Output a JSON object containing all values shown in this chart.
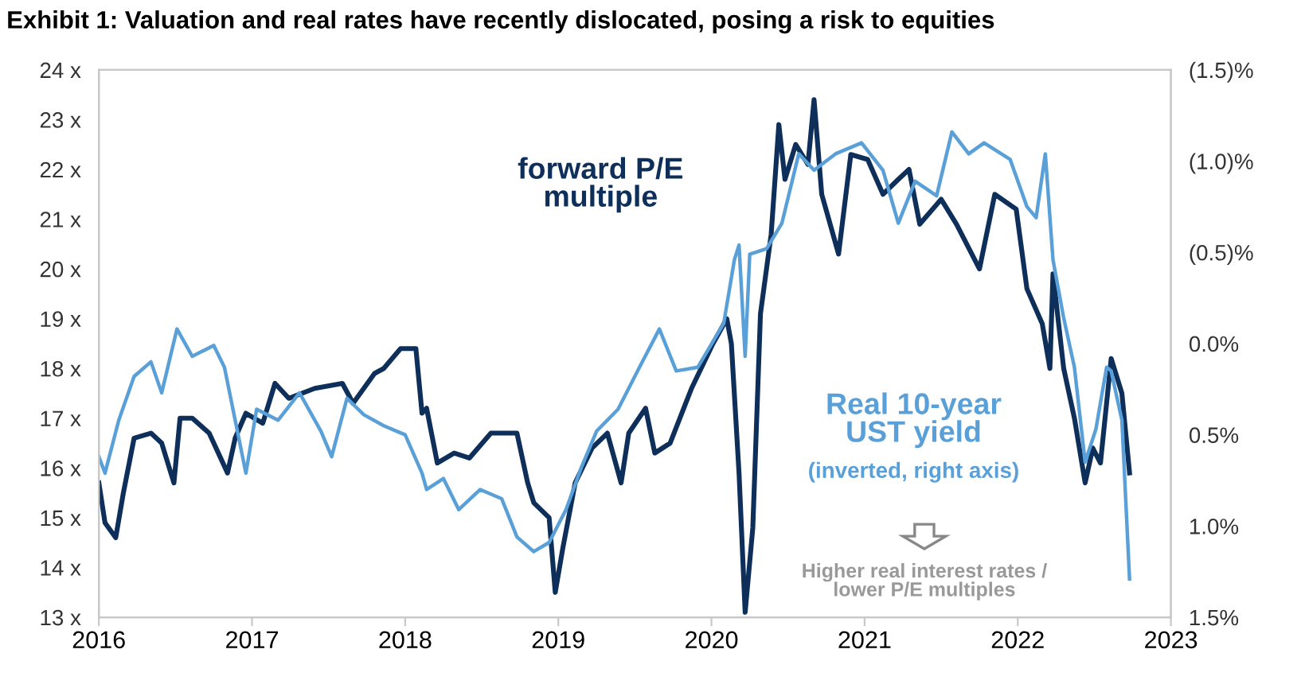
{
  "chart_data": {
    "type": "line",
    "title": "Exhibit 1: Valuation and real rates have recently dislocated, posing a risk to equities",
    "xlim": [
      2016,
      2023
    ],
    "xticks": [
      2016,
      2017,
      2018,
      2019,
      2020,
      2021,
      2022,
      2023
    ],
    "ylim": [
      13,
      24
    ],
    "yticks": [
      {
        "value": 13,
        "label": "13 x"
      },
      {
        "value": 14,
        "label": "14 x"
      },
      {
        "value": 15,
        "label": "15 x"
      },
      {
        "value": 16,
        "label": "16 x"
      },
      {
        "value": 17,
        "label": "17 x"
      },
      {
        "value": 18,
        "label": "18 x"
      },
      {
        "value": 19,
        "label": "19 x"
      },
      {
        "value": 20,
        "label": "20 x"
      },
      {
        "value": 21,
        "label": "21 x"
      },
      {
        "value": 22,
        "label": "22 x"
      },
      {
        "value": 23,
        "label": "23 x"
      },
      {
        "value": 24,
        "label": "24 x"
      }
    ],
    "y2lim": [
      1.5,
      -1.5
    ],
    "y2ticks": [
      {
        "value": -1.5,
        "label": "(1.5)%"
      },
      {
        "value": -1.0,
        "label": "(1.0)%"
      },
      {
        "value": -0.5,
        "label": "(0.5)%"
      },
      {
        "value": 0.0,
        "label": "0.0%"
      },
      {
        "value": 0.5,
        "label": "0.5%"
      },
      {
        "value": 1.0,
        "label": "1.0%"
      },
      {
        "value": 1.5,
        "label": "1.5%"
      }
    ],
    "grid": false,
    "legend": false,
    "series": [
      {
        "name": "forward P/E\nmultiple",
        "color": "#0d2f5a",
        "x": [
          2016.0,
          2016.04,
          2016.11,
          2016.16,
          2016.23,
          2016.34,
          2016.41,
          2016.49,
          2016.53,
          2016.61,
          2016.72,
          2016.84,
          2016.89,
          2016.96,
          2017.07,
          2017.15,
          2017.24,
          2017.41,
          2017.59,
          2017.66,
          2017.8,
          2017.86,
          2017.97,
          2018.07,
          2018.11,
          2018.14,
          2018.21,
          2018.32,
          2018.42,
          2018.56,
          2018.73,
          2018.8,
          2018.84,
          2018.94,
          2018.98,
          2019.03,
          2019.11,
          2019.22,
          2019.32,
          2019.41,
          2019.46,
          2019.57,
          2019.63,
          2019.73,
          2019.87,
          2020.01,
          2020.1,
          2020.13,
          2020.18,
          2020.22,
          2020.27,
          2020.32,
          2020.39,
          2020.44,
          2020.48,
          2020.55,
          2020.63,
          2020.67,
          2020.72,
          2020.83,
          2020.91,
          2021.02,
          2021.12,
          2021.22,
          2021.29,
          2021.36,
          2021.5,
          2021.6,
          2021.75,
          2021.85,
          2021.99,
          2022.06,
          2022.16,
          2022.21,
          2022.23,
          2022.3,
          2022.37,
          2022.44,
          2022.49,
          2022.54,
          2022.61,
          2022.68,
          2022.73
        ],
        "values": [
          15.7,
          14.9,
          14.6,
          15.5,
          16.6,
          16.7,
          16.5,
          15.7,
          17.0,
          17.0,
          16.7,
          15.9,
          16.6,
          17.1,
          16.9,
          17.7,
          17.4,
          17.6,
          17.7,
          17.3,
          17.9,
          18.0,
          18.4,
          18.4,
          17.1,
          17.2,
          16.1,
          16.3,
          16.2,
          16.7,
          16.7,
          15.7,
          15.3,
          15.0,
          13.5,
          14.4,
          15.7,
          16.4,
          16.7,
          15.7,
          16.7,
          17.2,
          16.3,
          16.5,
          17.6,
          18.5,
          19.0,
          18.5,
          15.9,
          13.1,
          14.8,
          19.1,
          20.7,
          22.9,
          21.8,
          22.5,
          22.1,
          23.4,
          21.5,
          20.3,
          22.3,
          22.2,
          21.5,
          21.8,
          22.0,
          20.9,
          21.4,
          20.9,
          20.0,
          21.5,
          21.2,
          19.6,
          18.9,
          18.0,
          19.9,
          18.0,
          17.0,
          15.7,
          16.4,
          16.1,
          18.2,
          17.5,
          15.9
        ]
      },
      {
        "name": "Real 10-year\nUST yield",
        "color": "#5aa0d8",
        "axis": "y2",
        "x": [
          2016.0,
          2016.04,
          2016.13,
          2016.23,
          2016.34,
          2016.41,
          2016.51,
          2016.61,
          2016.75,
          2016.82,
          2016.89,
          2016.96,
          2017.03,
          2017.17,
          2017.31,
          2017.45,
          2017.52,
          2017.62,
          2017.73,
          2017.86,
          2018.0,
          2018.11,
          2018.14,
          2018.25,
          2018.35,
          2018.49,
          2018.63,
          2018.73,
          2018.84,
          2018.94,
          2019.05,
          2019.15,
          2019.25,
          2019.39,
          2019.53,
          2019.66,
          2019.77,
          2019.91,
          2020.08,
          2020.15,
          2020.18,
          2020.22,
          2020.25,
          2020.36,
          2020.46,
          2020.57,
          2020.67,
          2020.81,
          2020.98,
          2021.12,
          2021.22,
          2021.33,
          2021.47,
          2021.57,
          2021.68,
          2021.78,
          2021.95,
          2022.06,
          2022.12,
          2022.18,
          2022.23,
          2022.3,
          2022.37,
          2022.44,
          2022.51,
          2022.58,
          2022.61,
          2022.68,
          2022.73
        ],
        "values": [
          0.62,
          0.71,
          0.42,
          0.18,
          0.1,
          0.27,
          -0.08,
          0.07,
          0.01,
          0.13,
          0.42,
          0.71,
          0.36,
          0.42,
          0.27,
          0.48,
          0.62,
          0.3,
          0.39,
          0.45,
          0.5,
          0.71,
          0.8,
          0.74,
          0.91,
          0.8,
          0.85,
          1.06,
          1.14,
          1.09,
          0.91,
          0.68,
          0.48,
          0.36,
          0.13,
          -0.08,
          0.15,
          0.13,
          -0.11,
          -0.46,
          -0.54,
          0.07,
          -0.49,
          -0.52,
          -0.66,
          -1.04,
          -0.95,
          -1.04,
          -1.1,
          -0.95,
          -0.66,
          -0.89,
          -0.81,
          -1.16,
          -1.04,
          -1.1,
          -1.01,
          -0.75,
          -0.69,
          -1.04,
          -0.46,
          -0.14,
          0.13,
          0.65,
          0.47,
          0.13,
          0.15,
          0.42,
          1.29
        ]
      }
    ],
    "annotations": [
      "(inverted, right axis)",
      "Higher real interest rates /\nlower P/E multiples"
    ]
  }
}
